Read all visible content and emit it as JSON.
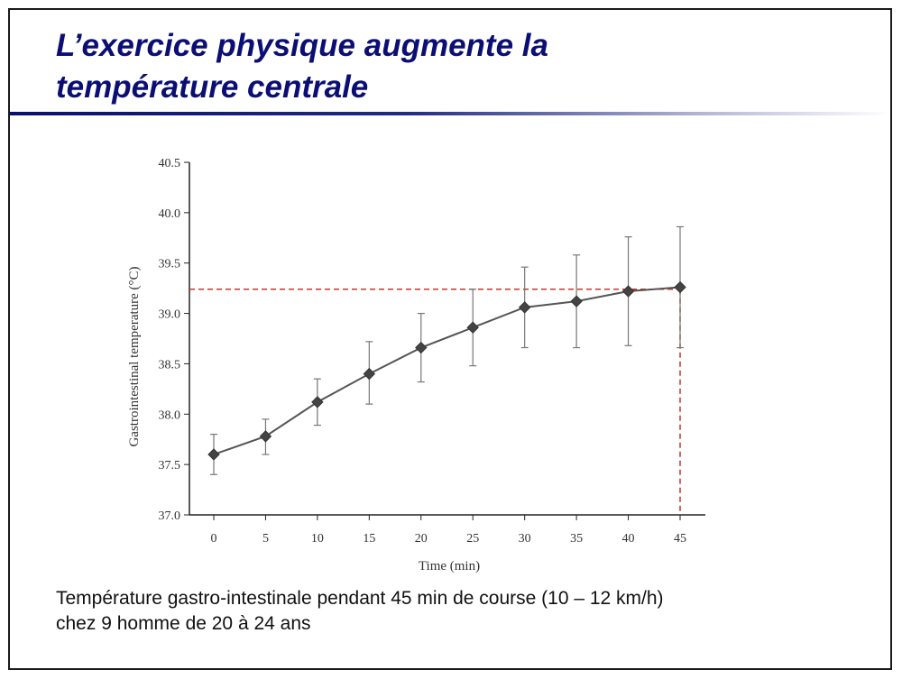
{
  "slide": {
    "title_line1": "L’exercice physique augmente la",
    "title_line2": "température centrale",
    "title_color": "#0b0f73",
    "caption_line1": "Température gastro-intestinale pendant 45 min de course (10 – 12 km/h)",
    "caption_line2": "chez 9 homme de 20 à 24 ans"
  },
  "chart_data": {
    "type": "line",
    "title": "",
    "xlabel": "Time (min)",
    "ylabel": "Gastrointestinal temperature (°C)",
    "x": [
      0,
      5,
      10,
      15,
      20,
      25,
      30,
      35,
      40,
      45
    ],
    "x_tick_labels": [
      "0",
      "5",
      "10",
      "15",
      "20",
      "25",
      "30",
      "35",
      "40",
      "45"
    ],
    "ylim": [
      37.0,
      40.5
    ],
    "y_ticks": [
      37.0,
      37.5,
      38.0,
      38.5,
      39.0,
      39.5,
      40.0,
      40.5
    ],
    "y_tick_labels": [
      "37.0",
      "37.5",
      "38.0",
      "38.5",
      "39.0",
      "39.5",
      "40.0",
      "40.5"
    ],
    "grid": false,
    "series": [
      {
        "name": "Gastrointestinal temperature",
        "values": [
          37.6,
          37.78,
          38.12,
          38.4,
          38.66,
          38.86,
          39.06,
          39.12,
          39.22,
          39.26
        ],
        "error_upper": [
          37.8,
          37.95,
          38.35,
          38.72,
          39.0,
          39.24,
          39.46,
          39.58,
          39.76,
          39.86
        ],
        "error_lower": [
          37.4,
          37.6,
          37.89,
          38.1,
          38.32,
          38.48,
          38.66,
          38.66,
          38.68,
          38.66
        ],
        "color": "#555555"
      }
    ],
    "reference_lines": {
      "horizontal_y": 39.24,
      "vertical_x": 45,
      "color": "#c0392b",
      "style": "dashed"
    }
  }
}
